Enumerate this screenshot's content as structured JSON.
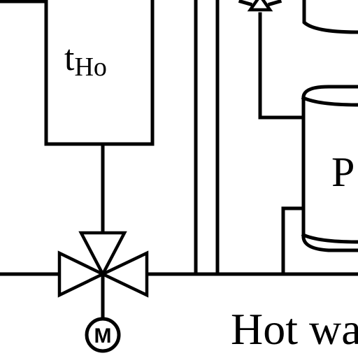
{
  "sensor_box": {
    "label_main": "t",
    "label_sub": "Ho"
  },
  "motor": {
    "label": "M"
  },
  "tank": {
    "label": "P"
  },
  "caption": {
    "text": "Hot wa"
  }
}
